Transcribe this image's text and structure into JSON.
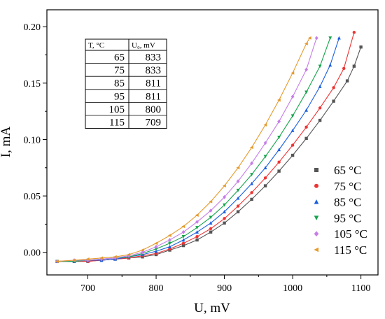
{
  "chart_data": {
    "type": "scatter",
    "xlabel": "U, mV",
    "ylabel": "I, mA",
    "xlim": [
      640,
      1125
    ],
    "ylim": [
      -0.02,
      0.215
    ],
    "xticks": [
      700,
      800,
      900,
      1000,
      1100
    ],
    "yticks": [
      0.0,
      0.05,
      0.1,
      0.15,
      0.2
    ],
    "xtick_labels": [
      "700",
      "800",
      "900",
      "1000",
      "1100"
    ],
    "ytick_labels": [
      "0.00",
      "0.05",
      "0.10",
      "0.15",
      "0.20"
    ],
    "grid": false,
    "legend_position": "bottom-right",
    "table": {
      "headers": [
        "T, °C",
        "U₀, mV"
      ],
      "rows": [
        [
          "65",
          "833"
        ],
        [
          "75",
          "833"
        ],
        [
          "85",
          "811"
        ],
        [
          "95",
          "811"
        ],
        [
          "105",
          "800"
        ],
        [
          "115",
          "709"
        ]
      ]
    },
    "series": [
      {
        "name": "65 °C",
        "color": "#555555",
        "marker": "square",
        "x": [
          655,
          680,
          700,
          720,
          740,
          760,
          780,
          800,
          820,
          840,
          860,
          880,
          900,
          920,
          940,
          960,
          980,
          1000,
          1020,
          1040,
          1060,
          1080,
          1090,
          1100
        ],
        "y": [
          -0.008,
          -0.008,
          -0.008,
          -0.007,
          -0.006,
          -0.005,
          -0.004,
          -0.002,
          0.002,
          0.006,
          0.011,
          0.018,
          0.026,
          0.036,
          0.047,
          0.059,
          0.072,
          0.086,
          0.101,
          0.117,
          0.134,
          0.152,
          0.165,
          0.182
        ]
      },
      {
        "name": "75 °C",
        "color": "#ee3333",
        "marker": "circle",
        "x": [
          655,
          680,
          700,
          720,
          740,
          760,
          780,
          800,
          820,
          840,
          860,
          880,
          900,
          920,
          940,
          960,
          980,
          1000,
          1020,
          1040,
          1060,
          1075,
          1090
        ],
        "y": [
          -0.008,
          -0.008,
          -0.008,
          -0.007,
          -0.006,
          -0.005,
          -0.003,
          -0.001,
          0.003,
          0.008,
          0.014,
          0.021,
          0.03,
          0.041,
          0.053,
          0.066,
          0.08,
          0.095,
          0.111,
          0.128,
          0.146,
          0.163,
          0.195
        ]
      },
      {
        "name": "85 °C",
        "color": "#1a5fe0",
        "marker": "triangle-up",
        "x": [
          655,
          680,
          700,
          720,
          740,
          760,
          780,
          800,
          820,
          840,
          860,
          880,
          900,
          920,
          940,
          960,
          980,
          1000,
          1020,
          1040,
          1055,
          1068
        ],
        "y": [
          -0.008,
          -0.008,
          -0.007,
          -0.007,
          -0.006,
          -0.004,
          -0.002,
          0.001,
          0.005,
          0.011,
          0.018,
          0.026,
          0.036,
          0.048,
          0.061,
          0.075,
          0.091,
          0.108,
          0.126,
          0.147,
          0.166,
          0.19
        ]
      },
      {
        "name": "95 °C",
        "color": "#16a44c",
        "marker": "triangle-down",
        "x": [
          655,
          680,
          700,
          720,
          740,
          760,
          780,
          800,
          820,
          840,
          860,
          880,
          900,
          920,
          940,
          960,
          980,
          1000,
          1020,
          1040,
          1055
        ],
        "y": [
          -0.008,
          -0.008,
          -0.007,
          -0.006,
          -0.005,
          -0.004,
          -0.001,
          0.003,
          0.008,
          0.014,
          0.022,
          0.031,
          0.042,
          0.055,
          0.069,
          0.085,
          0.102,
          0.121,
          0.142,
          0.165,
          0.19
        ]
      },
      {
        "name": "105 °C",
        "color": "#c77ee8",
        "marker": "diamond",
        "x": [
          655,
          680,
          700,
          720,
          740,
          760,
          780,
          800,
          820,
          840,
          860,
          880,
          900,
          920,
          940,
          960,
          980,
          1000,
          1020,
          1035
        ],
        "y": [
          -0.008,
          -0.007,
          -0.007,
          -0.006,
          -0.005,
          -0.003,
          0.0,
          0.005,
          0.011,
          0.018,
          0.027,
          0.037,
          0.049,
          0.063,
          0.079,
          0.097,
          0.116,
          0.138,
          0.162,
          0.19
        ]
      },
      {
        "name": "115 °C",
        "color": "#e59a2c",
        "marker": "triangle-left",
        "x": [
          655,
          680,
          700,
          720,
          740,
          760,
          780,
          800,
          820,
          840,
          860,
          880,
          900,
          920,
          940,
          960,
          980,
          1000,
          1020,
          1025
        ],
        "y": [
          -0.008,
          -0.007,
          -0.006,
          -0.005,
          -0.004,
          -0.002,
          0.002,
          0.008,
          0.015,
          0.023,
          0.033,
          0.045,
          0.059,
          0.075,
          0.093,
          0.113,
          0.135,
          0.159,
          0.185,
          0.19
        ]
      }
    ]
  }
}
